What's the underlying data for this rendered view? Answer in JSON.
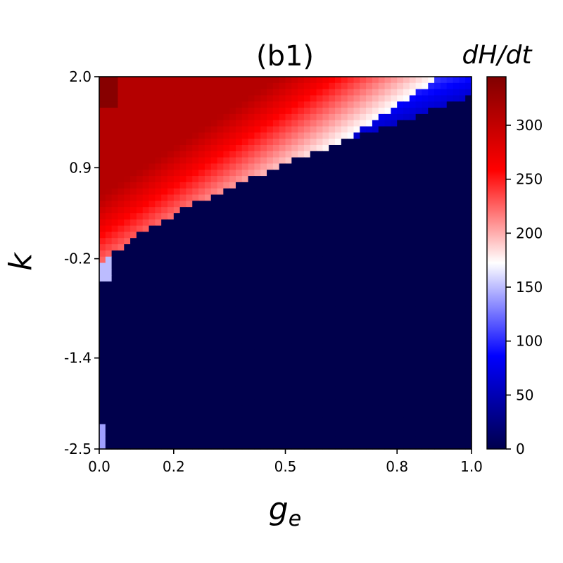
{
  "chart_data": {
    "type": "heatmap",
    "title": "(b1)",
    "xlabel": "g",
    "xlabel_subscript": "e",
    "ylabel": "k",
    "colorbar_label": "dH/dt",
    "xlim": [
      0.0,
      1.0
    ],
    "ylim": [
      -2.5,
      2.0
    ],
    "x_ticks": [
      {
        "value": 0.0,
        "label": "0.0"
      },
      {
        "value": 0.2,
        "label": "0.2"
      },
      {
        "value": 0.5,
        "label": "0.5"
      },
      {
        "value": 0.8,
        "label": "0.8"
      },
      {
        "value": 1.0,
        "label": "1.0"
      }
    ],
    "y_ticks": [
      {
        "value": 2.0,
        "label": "2.0"
      },
      {
        "value": 0.9,
        "label": "0.9"
      },
      {
        "value": -0.2,
        "label": "-0.2"
      },
      {
        "value": -1.4,
        "label": "-1.4"
      },
      {
        "value": -2.5,
        "label": "-2.5"
      }
    ],
    "colorbar": {
      "min": 0,
      "max": 345,
      "ticks": [
        {
          "value": 0,
          "label": "0"
        },
        {
          "value": 50,
          "label": "50"
        },
        {
          "value": 100,
          "label": "100"
        },
        {
          "value": 150,
          "label": "150"
        },
        {
          "value": 200,
          "label": "200"
        },
        {
          "value": 250,
          "label": "250"
        },
        {
          "value": 300,
          "label": "300"
        }
      ],
      "colormap": "seismic",
      "stops": [
        "#00004c",
        "#0000ff",
        "#ffffff",
        "#ff0000",
        "#800000"
      ]
    },
    "grid": false,
    "grid_resolution": {
      "nx": 60,
      "ny": 60
    }
  }
}
